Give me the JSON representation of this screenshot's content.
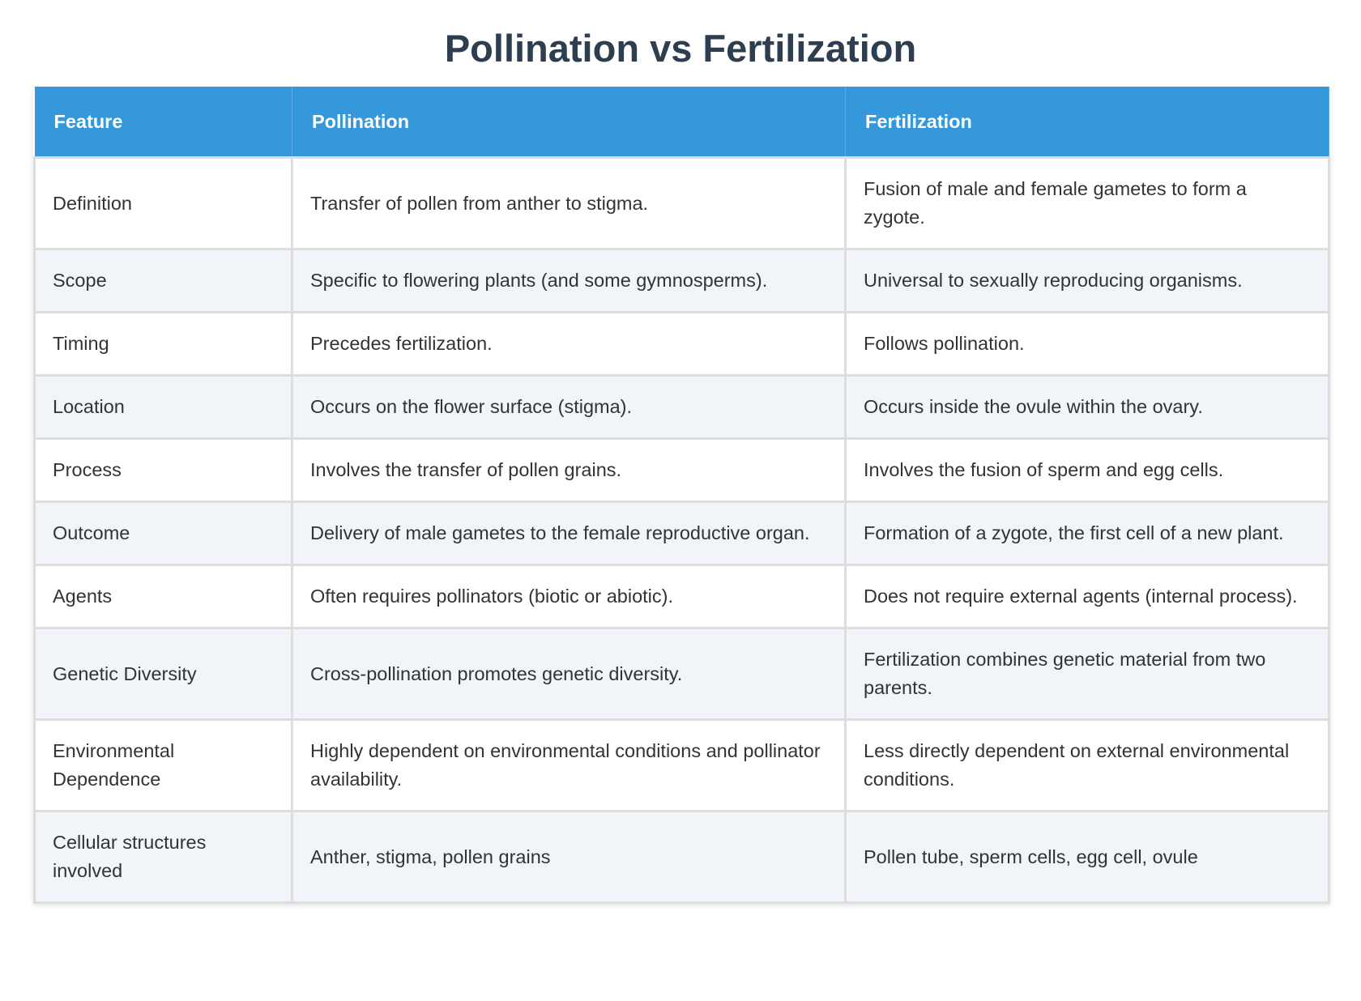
{
  "header": {
    "title": "Pollination vs Fertilization"
  },
  "table": {
    "columns": [
      "Feature",
      "Pollination",
      "Fertilization"
    ],
    "rows": [
      [
        "Definition",
        "Transfer of pollen from anther to stigma.",
        "Fusion of male and female gametes to form a zygote."
      ],
      [
        "Scope",
        "Specific to flowering plants (and some gymnosperms).",
        "Universal to sexually reproducing organisms."
      ],
      [
        "Timing",
        "Precedes fertilization.",
        "Follows pollination."
      ],
      [
        "Location",
        "Occurs on the flower surface (stigma).",
        "Occurs inside the ovule within the ovary."
      ],
      [
        "Process",
        "Involves the transfer of pollen grains.",
        "Involves the fusion of sperm and egg cells."
      ],
      [
        "Outcome",
        "Delivery of male gametes to the female reproductive organ.",
        "Formation of a zygote, the first cell of a new plant."
      ],
      [
        "Agents",
        "Often requires pollinators (biotic or abiotic).",
        "Does not require external agents (internal process)."
      ],
      [
        "Genetic Diversity",
        "Cross-pollination promotes genetic diversity.",
        "Fertilization combines genetic material from two parents."
      ],
      [
        "Environmental Dependence",
        "Highly dependent on environmental conditions and pollinator availability.",
        "Less directly dependent on external environmental conditions."
      ],
      [
        "Cellular structures involved",
        "Anther, stigma, pollen grains",
        "Pollen tube, sperm cells, egg cell, ovule"
      ]
    ]
  }
}
